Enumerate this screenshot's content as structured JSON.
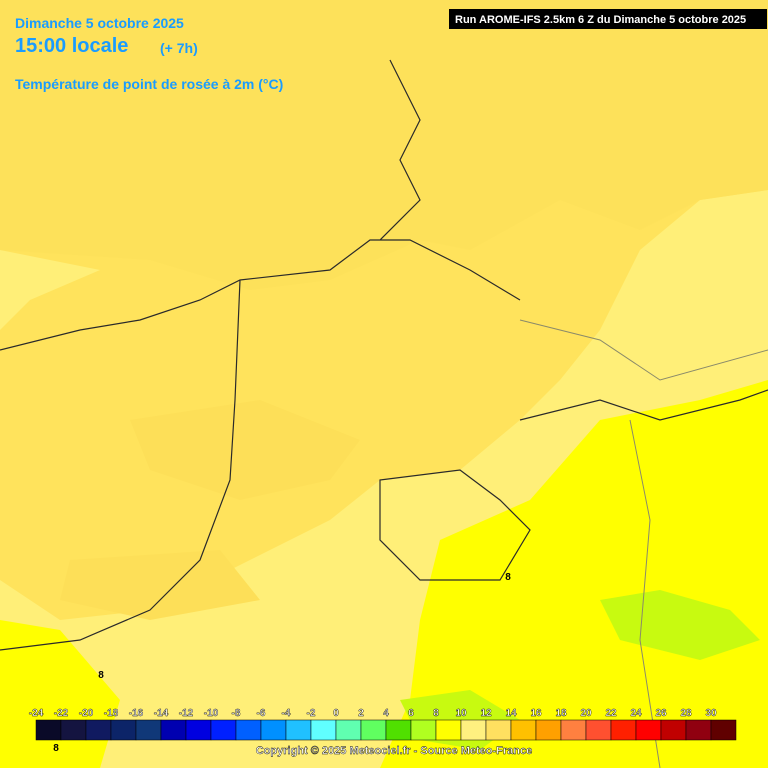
{
  "header": {
    "date": "Dimanche 5 octobre 2025",
    "time": "15:00 locale",
    "lead": "(+ 7h)",
    "variable": "Température de point de rosée à 2m (°C)"
  },
  "run": "Run AROME-IFS 2.5km 6 Z du Dimanche 5 octobre 2025",
  "legend": {
    "ticks": [
      -24,
      -22,
      -20,
      -18,
      -16,
      -14,
      -12,
      -10,
      -8,
      -6,
      -4,
      -2,
      0,
      2,
      4,
      6,
      8,
      10,
      12,
      14,
      16,
      18,
      20,
      22,
      24,
      26,
      28,
      30
    ],
    "colors": [
      "#0a0a28",
      "#141440",
      "#101a60",
      "#0c2468",
      "#103878",
      "#0000b0",
      "#0000e0",
      "#0020ff",
      "#0060ff",
      "#0090ff",
      "#20c0ff",
      "#60ffff",
      "#60ffb0",
      "#60ff60",
      "#50e000",
      "#b0ff20",
      "#ffff00",
      "#fff080",
      "#ffe060",
      "#ffc000",
      "#ffa000",
      "#ff8040",
      "#ff5030",
      "#ff2000",
      "#ff0000",
      "#c00000",
      "#900010",
      "#600000"
    ]
  },
  "copyright": "Copyright © 2025 Meteociel.fr - Source Meteo-France",
  "map_labels": [
    "8",
    "8",
    "8"
  ]
}
